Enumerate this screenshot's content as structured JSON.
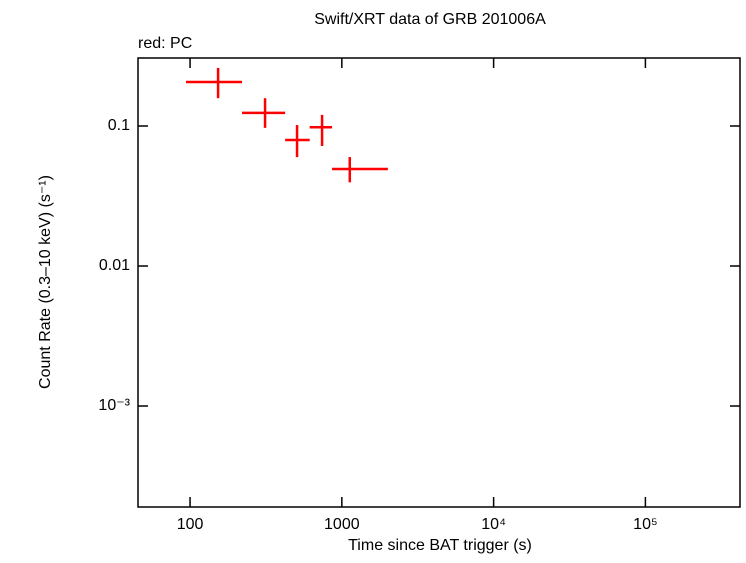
{
  "chart_data": {
    "type": "errorbar-scatter",
    "title": "Swift/XRT data of GRB 201006A",
    "subtitle": "red: PC",
    "x_label": "Time since BAT trigger (s)",
    "y_label": "Count Rate (0.3–10 keV) (s⁻¹)",
    "log_x": true,
    "log_y": true,
    "xlim": [
      45.4,
      420000
    ],
    "ylim": [
      0.00019,
      0.306
    ],
    "xticks": [
      100,
      1000,
      {
        "value": 10000,
        "label": "10⁴"
      },
      {
        "value": 100000,
        "label": "10⁵"
      }
    ],
    "yticks": [
      0.1,
      0.01,
      {
        "value": 0.001,
        "label": "10⁻³"
      }
    ],
    "series": [
      {
        "name": "PC",
        "color": "#ff0000",
        "x": [
          153,
          312,
          507,
          741,
          1128
        ],
        "x_lo": [
          94,
          220,
          423,
          614,
          862
        ],
        "x_hi": [
          220,
          423,
          614,
          862,
          2010
        ],
        "values": [
          0.206,
          0.124,
          0.0794,
          0.098,
          0.0493
        ],
        "y_lo": [
          0.158,
          0.097,
          0.06,
          0.072,
          0.0396
        ],
        "y_hi": [
          0.26,
          0.158,
          0.1016,
          0.12,
          0.06
        ]
      }
    ]
  }
}
